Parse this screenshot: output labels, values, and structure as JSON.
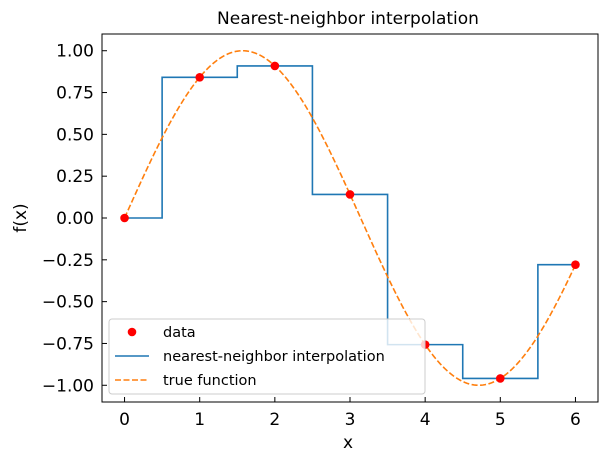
{
  "chart_data": {
    "type": "line",
    "title": "Nearest-neighbor interpolation",
    "xlabel": "x",
    "ylabel": "f(x)",
    "xlim": [
      -0.3,
      6.3
    ],
    "ylim": [
      -1.1,
      1.1
    ],
    "xticks": [
      0,
      1,
      2,
      3,
      4,
      5,
      6
    ],
    "xtick_labels": [
      "0",
      "1",
      "2",
      "3",
      "4",
      "5",
      "6"
    ],
    "yticks": [
      1.0,
      0.75,
      0.5,
      0.25,
      0.0,
      -0.25,
      -0.5,
      -0.75,
      -1.0
    ],
    "ytick_labels": [
      "1.00",
      "0.75",
      "0.50",
      "0.25",
      "0.00",
      "−0.25",
      "−0.50",
      "−0.75",
      "−1.00"
    ],
    "grid": false,
    "legend_position": "lower-left",
    "series": [
      {
        "name": "data",
        "kind": "scatter",
        "color": "#ff0000",
        "x": [
          0,
          1,
          2,
          3,
          4,
          5,
          6
        ],
        "y": [
          0.0,
          0.841,
          0.909,
          0.141,
          -0.757,
          -0.959,
          -0.279
        ]
      },
      {
        "name": "nearest-neighbor interpolation",
        "kind": "step",
        "color": "#1f77b4",
        "x": [
          0,
          0.5,
          0.5,
          1.5,
          1.5,
          2.5,
          2.5,
          3.5,
          3.5,
          4.5,
          4.5,
          5.5,
          5.5,
          6
        ],
        "y": [
          0.0,
          0.0,
          0.841,
          0.841,
          0.909,
          0.909,
          0.141,
          0.141,
          -0.757,
          -0.757,
          -0.959,
          -0.959,
          -0.279,
          -0.279
        ]
      },
      {
        "name": "true function",
        "kind": "dashed-line",
        "color": "#ff7f0e",
        "function": "sin(x)",
        "x_range": [
          0,
          6
        ]
      }
    ]
  }
}
